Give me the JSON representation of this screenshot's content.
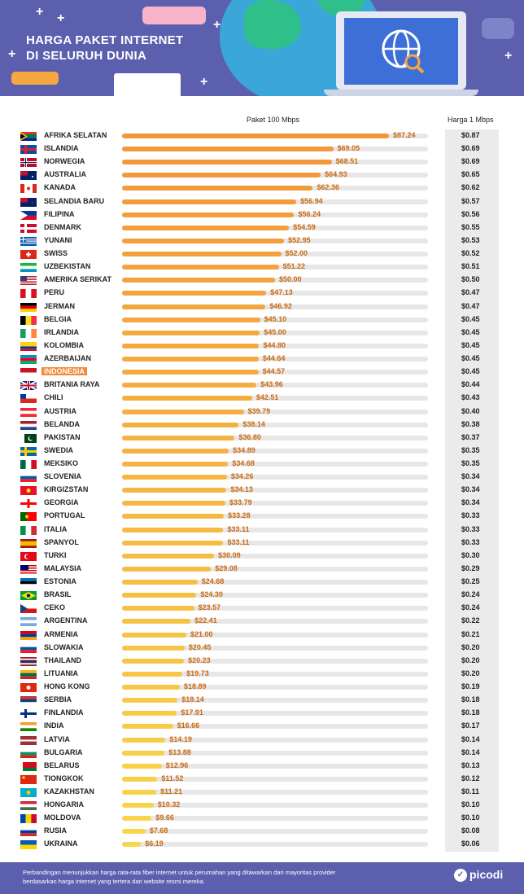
{
  "header": {
    "title_line1": "HARGA PAKET INTERNET",
    "title_line2": "DI SELURUH DUNIA"
  },
  "columns": {
    "package": "Paket 100 Mbps",
    "per_mbps": "Harga 1 Mbps"
  },
  "footer": {
    "note_line1": "Perbandingan menunjukkan harga rata-rata fiber internet untuk perumahan yang ditawarkan dari mayoritas provider",
    "note_line2": "berdasarkan harga internet yang tertera dari website resmi mereka.",
    "logo": "picodi"
  },
  "colors": {
    "header_bg": "#5b5fae",
    "bar_high": "#f2963a",
    "bar_low": "#f8d24a",
    "highlight": "#f0893a",
    "value_text": "#c96a12"
  },
  "chart_data": {
    "type": "bar",
    "orientation": "horizontal",
    "highlight": "INDONESIA",
    "xlim": [
      0,
      100
    ],
    "series": [
      {
        "name": "Paket 100 Mbps",
        "prefix": "$"
      },
      {
        "name": "Harga 1 Mbps",
        "prefix": "$"
      }
    ],
    "rows": [
      {
        "country": "AFRIKA SELATAN",
        "flag": "za",
        "price": "$87.24",
        "value": 87.24,
        "per": "$0.87"
      },
      {
        "country": "ISLANDIA",
        "flag": "is",
        "price": "$69.05",
        "value": 69.05,
        "per": "$0.69"
      },
      {
        "country": "NORWEGIA",
        "flag": "no",
        "price": "$68.51",
        "value": 68.51,
        "per": "$0.69"
      },
      {
        "country": "AUSTRALIA",
        "flag": "au",
        "price": "$64.93",
        "value": 64.93,
        "per": "$0.65"
      },
      {
        "country": "KANADA",
        "flag": "ca",
        "price": "$62.36",
        "value": 62.36,
        "per": "$0.62"
      },
      {
        "country": "SELANDIA BARU",
        "flag": "nz",
        "price": "$56.94",
        "value": 56.94,
        "per": "$0.57"
      },
      {
        "country": "FILIPINA",
        "flag": "ph",
        "price": "$56.24",
        "value": 56.24,
        "per": "$0.56"
      },
      {
        "country": "DENMARK",
        "flag": "dk",
        "price": "$54.59",
        "value": 54.59,
        "per": "$0.55"
      },
      {
        "country": "YUNANI",
        "flag": "gr",
        "price": "$52.95",
        "value": 52.95,
        "per": "$0.53"
      },
      {
        "country": "SWISS",
        "flag": "ch",
        "price": "$52.00",
        "value": 52.0,
        "per": "$0.52"
      },
      {
        "country": "UZBEKISTAN",
        "flag": "uz",
        "price": "$51.22",
        "value": 51.22,
        "per": "$0.51"
      },
      {
        "country": "AMERIKA SERIKAT",
        "flag": "us",
        "price": "$50.00",
        "value": 50.0,
        "per": "$0.50"
      },
      {
        "country": "PERU",
        "flag": "pe",
        "price": "$47.13",
        "value": 47.13,
        "per": "$0.47"
      },
      {
        "country": "JERMAN",
        "flag": "de",
        "price": "$46.92",
        "value": 46.92,
        "per": "$0.47"
      },
      {
        "country": "BELGIA",
        "flag": "be",
        "price": "$45.10",
        "value": 45.1,
        "per": "$0.45"
      },
      {
        "country": "IRLANDIA",
        "flag": "ie",
        "price": "$45.00",
        "value": 45.0,
        "per": "$0.45"
      },
      {
        "country": "KOLOMBIA",
        "flag": "co",
        "price": "$44.80",
        "value": 44.8,
        "per": "$0.45"
      },
      {
        "country": "AZERBAIJAN",
        "flag": "az",
        "price": "$44.64",
        "value": 44.64,
        "per": "$0.45"
      },
      {
        "country": "INDONESIA",
        "flag": "id",
        "price": "$44.57",
        "value": 44.57,
        "per": "$0.45"
      },
      {
        "country": "BRITANIA RAYA",
        "flag": "gb",
        "price": "$43.96",
        "value": 43.96,
        "per": "$0.44"
      },
      {
        "country": "CHILI",
        "flag": "cl",
        "price": "$42.51",
        "value": 42.51,
        "per": "$0.43"
      },
      {
        "country": "AUSTRIA",
        "flag": "at",
        "price": "$39.79",
        "value": 39.79,
        "per": "$0.40"
      },
      {
        "country": "BELANDA",
        "flag": "nl",
        "price": "$38.14",
        "value": 38.14,
        "per": "$0.38"
      },
      {
        "country": "PAKISTAN",
        "flag": "pk",
        "price": "$36.80",
        "value": 36.8,
        "per": "$0.37"
      },
      {
        "country": "SWEDIA",
        "flag": "se",
        "price": "$34.89",
        "value": 34.89,
        "per": "$0.35"
      },
      {
        "country": "MEKSIKO",
        "flag": "mx",
        "price": "$34.68",
        "value": 34.68,
        "per": "$0.35"
      },
      {
        "country": "SLOVENIA",
        "flag": "si",
        "price": "$34.26",
        "value": 34.26,
        "per": "$0.34"
      },
      {
        "country": "KIRGIZSTAN",
        "flag": "kg",
        "price": "$34.13",
        "value": 34.13,
        "per": "$0.34"
      },
      {
        "country": "GEORGIA",
        "flag": "ge",
        "price": "$33.79",
        "value": 33.79,
        "per": "$0.34"
      },
      {
        "country": "PORTUGAL",
        "flag": "pt",
        "price": "$33.28",
        "value": 33.28,
        "per": "$0.33"
      },
      {
        "country": "ITALIA",
        "flag": "it",
        "price": "$33.11",
        "value": 33.11,
        "per": "$0.33"
      },
      {
        "country": "SPANYOL",
        "flag": "es",
        "price": "$33.11",
        "value": 33.11,
        "per": "$0.33"
      },
      {
        "country": "TURKI",
        "flag": "tr",
        "price": "$30.09",
        "value": 30.09,
        "per": "$0.30"
      },
      {
        "country": "MALAYSIA",
        "flag": "my",
        "price": "$29.08",
        "value": 29.08,
        "per": "$0.29"
      },
      {
        "country": "ESTONIA",
        "flag": "ee",
        "price": "$24.68",
        "value": 24.68,
        "per": "$0.25"
      },
      {
        "country": "BRASIL",
        "flag": "br",
        "price": "$24.30",
        "value": 24.3,
        "per": "$0.24"
      },
      {
        "country": "CEKO",
        "flag": "cz",
        "price": "$23.57",
        "value": 23.57,
        "per": "$0.24"
      },
      {
        "country": "ARGENTINA",
        "flag": "ar",
        "price": "$22.41",
        "value": 22.41,
        "per": "$0.22"
      },
      {
        "country": "ARMENIA",
        "flag": "am",
        "price": "$21.00",
        "value": 21.0,
        "per": "$0.21"
      },
      {
        "country": "SLOWAKIA",
        "flag": "sk",
        "price": "$20.45",
        "value": 20.45,
        "per": "$0.20"
      },
      {
        "country": "THAILAND",
        "flag": "th",
        "price": "$20.23",
        "value": 20.23,
        "per": "$0.20"
      },
      {
        "country": "LITUANIA",
        "flag": "lt",
        "price": "$19.73",
        "value": 19.73,
        "per": "$0.20"
      },
      {
        "country": "HONG KONG",
        "flag": "hk",
        "price": "$18.89",
        "value": 18.89,
        "per": "$0.19"
      },
      {
        "country": "SERBIA",
        "flag": "rs",
        "price": "$18.14",
        "value": 18.14,
        "per": "$0.18"
      },
      {
        "country": "FINLANDIA",
        "flag": "fi",
        "price": "$17.91",
        "value": 17.91,
        "per": "$0.18"
      },
      {
        "country": "INDIA",
        "flag": "in",
        "price": "$16.66",
        "value": 16.66,
        "per": "$0.17"
      },
      {
        "country": "LATVIA",
        "flag": "lv",
        "price": "$14.19",
        "value": 14.19,
        "per": "$0.14"
      },
      {
        "country": "BULGARIA",
        "flag": "bg",
        "price": "$13.88",
        "value": 13.88,
        "per": "$0.14"
      },
      {
        "country": "BELARUS",
        "flag": "by",
        "price": "$12.96",
        "value": 12.96,
        "per": "$0.13"
      },
      {
        "country": "TIONGKOK",
        "flag": "cn",
        "price": "$11.52",
        "value": 11.52,
        "per": "$0.12"
      },
      {
        "country": "KAZAKHSTAN",
        "flag": "kz",
        "price": "$11.21",
        "value": 11.21,
        "per": "$0.11"
      },
      {
        "country": "HONGARIA",
        "flag": "hu",
        "price": "$10.32",
        "value": 10.32,
        "per": "$0.10"
      },
      {
        "country": "MOLDOVA",
        "flag": "md",
        "price": "$9.66",
        "value": 9.66,
        "per": "$0.10"
      },
      {
        "country": "RUSIA",
        "flag": "ru",
        "price": "$7.68",
        "value": 7.68,
        "per": "$0.08"
      },
      {
        "country": "UKRAINA",
        "flag": "ua",
        "price": "$6.19",
        "value": 6.19,
        "per": "$0.06"
      }
    ]
  }
}
